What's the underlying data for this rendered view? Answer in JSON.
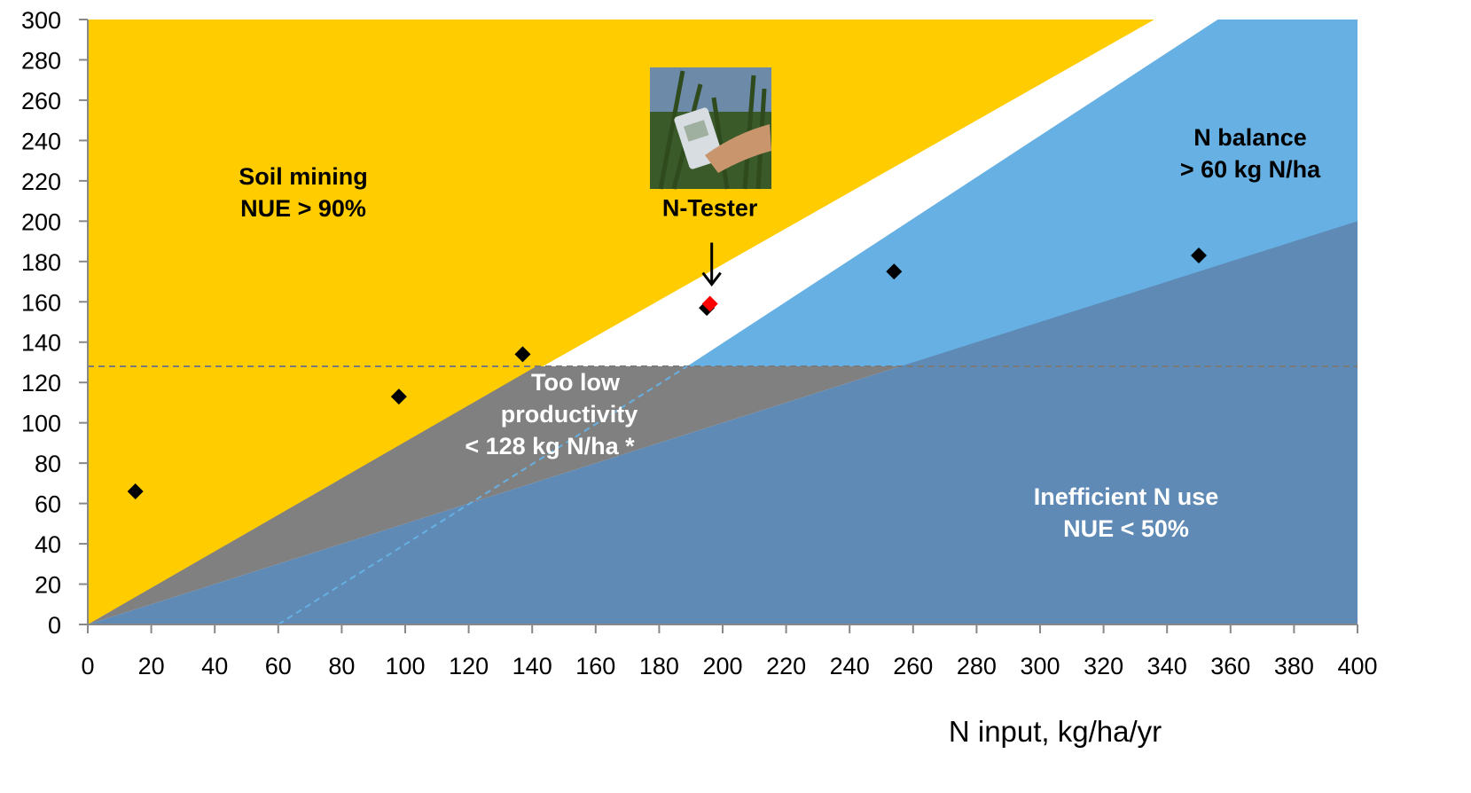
{
  "chart_data": {
    "type": "scatter",
    "xlabel": "N input, kg/ha/yr",
    "ylabel": "",
    "xlim": [
      0,
      400
    ],
    "ylim": [
      0,
      300
    ],
    "xticks": [
      0,
      20,
      40,
      60,
      80,
      100,
      120,
      140,
      160,
      180,
      200,
      220,
      240,
      260,
      280,
      300,
      320,
      340,
      360,
      380,
      400
    ],
    "yticks": [
      0,
      20,
      40,
      60,
      80,
      100,
      120,
      140,
      160,
      180,
      200,
      220,
      240,
      260,
      280,
      300
    ],
    "grid": false,
    "points": [
      {
        "x": 15,
        "y": 66
      },
      {
        "x": 98,
        "y": 113
      },
      {
        "x": 137,
        "y": 134
      },
      {
        "x": 195,
        "y": 157
      },
      {
        "x": 254,
        "y": 175
      },
      {
        "x": 350,
        "y": 183
      }
    ],
    "highlight_point": {
      "x": 196,
      "y": 159,
      "color": "#ff0000"
    },
    "reference_line_y": 128,
    "zones": {
      "soil_mining": {
        "line1": "Soil mining",
        "line2": "NUE > 90%",
        "color": "#ffcc00"
      },
      "n_balance": {
        "line1": "N balance",
        "line2": "> 60 kg N/ha",
        "color": "#66b0e3"
      },
      "too_low": {
        "line1": "Too low",
        "line2": "productivity",
        "line3": "< 128 kg N/ha *",
        "color": "#808080"
      },
      "inefficient": {
        "line1": "Inefficient N use",
        "line2": "NUE < 50%",
        "color": "#5f8ab5"
      }
    },
    "annotation": {
      "label": "N-Tester",
      "x": 196,
      "y": 159
    }
  }
}
